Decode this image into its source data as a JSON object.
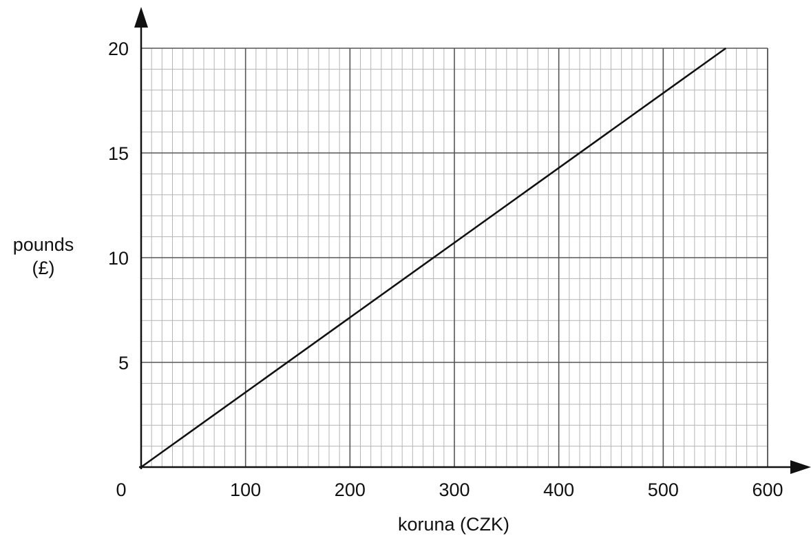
{
  "chart_data": {
    "type": "line",
    "title": "",
    "xlabel": "koruna (CZK)",
    "ylabel": [
      "pounds",
      "(£)"
    ],
    "xlim": [
      0,
      600
    ],
    "ylim": [
      0,
      20
    ],
    "x_ticks": [
      0,
      100,
      200,
      300,
      400,
      500,
      600
    ],
    "y_ticks": [
      5,
      10,
      15,
      20
    ],
    "origin_label": "0",
    "x_minor_step": 10,
    "y_minor_step": 1,
    "grid": true,
    "series": [
      {
        "x": [
          0,
          560
        ],
        "y": [
          0,
          20
        ]
      }
    ]
  }
}
